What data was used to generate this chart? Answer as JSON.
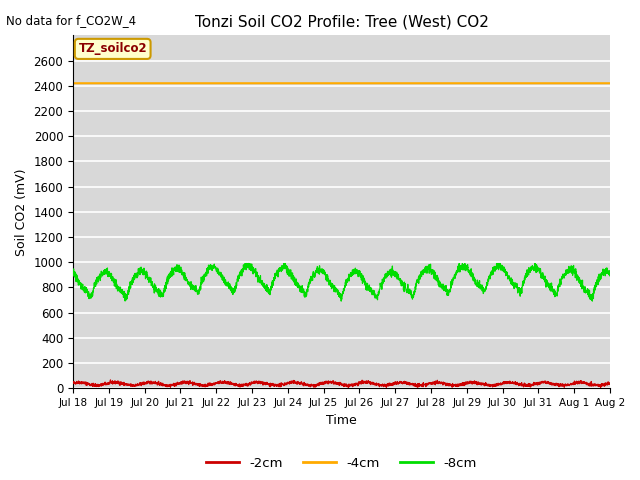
{
  "title": "Tonzi Soil CO2 Profile: Tree (West) CO2",
  "top_left_text": "No data for f_CO2W_4",
  "box_label": "TZ_soilco2",
  "xlabel": "Time",
  "ylabel": "Soil CO2 (mV)",
  "ylim": [
    0,
    2800
  ],
  "yticks": [
    0,
    200,
    400,
    600,
    800,
    1000,
    1200,
    1400,
    1600,
    1800,
    2000,
    2200,
    2400,
    2600
  ],
  "x_start_day": 18,
  "x_end_day": 33,
  "num_points": 3000,
  "red_mean": 35,
  "red_amp": 12,
  "red_noise": 6,
  "orange_level": 2420,
  "green_mean": 870,
  "green_amp": 80,
  "green_noise": 15,
  "green_period_days": 1.0,
  "red_color": "#cc0000",
  "orange_color": "#ffaa00",
  "green_color": "#00dd00",
  "bg_color": "#d8d8d8",
  "grid_color": "#ffffff",
  "fig_bg_color": "#ffffff",
  "legend_labels": [
    "-2cm",
    "-4cm",
    "-8cm"
  ],
  "xtick_labels": [
    "Jul 18",
    "Jul 19",
    "Jul 20",
    "Jul 21",
    "Jul 22",
    "Jul 23",
    "Jul 24",
    "Jul 25",
    "Jul 26",
    "Jul 27",
    "Jul 28",
    "Jul 29",
    "Jul 30",
    "Jul 31",
    "Aug 1",
    "Aug 2"
  ],
  "xtick_positions": [
    18,
    19,
    20,
    21,
    22,
    23,
    24,
    25,
    26,
    27,
    28,
    29,
    30,
    31,
    32,
    33
  ]
}
